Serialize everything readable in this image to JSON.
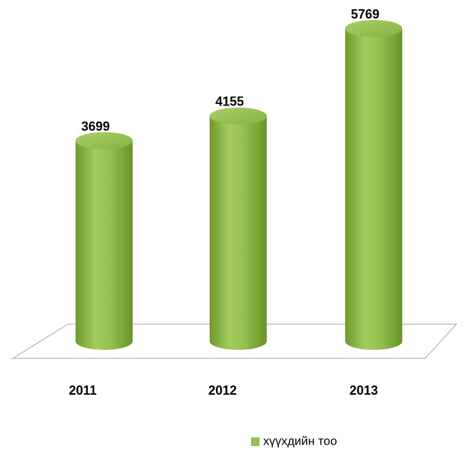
{
  "chart_data": {
    "type": "cylinder",
    "categories": [
      "2011",
      "2012",
      "2013"
    ],
    "series": [
      {
        "name": "хүүхдийн тоо",
        "color": "#92c050",
        "values": [
          3699,
          4155,
          5769
        ]
      }
    ]
  }
}
